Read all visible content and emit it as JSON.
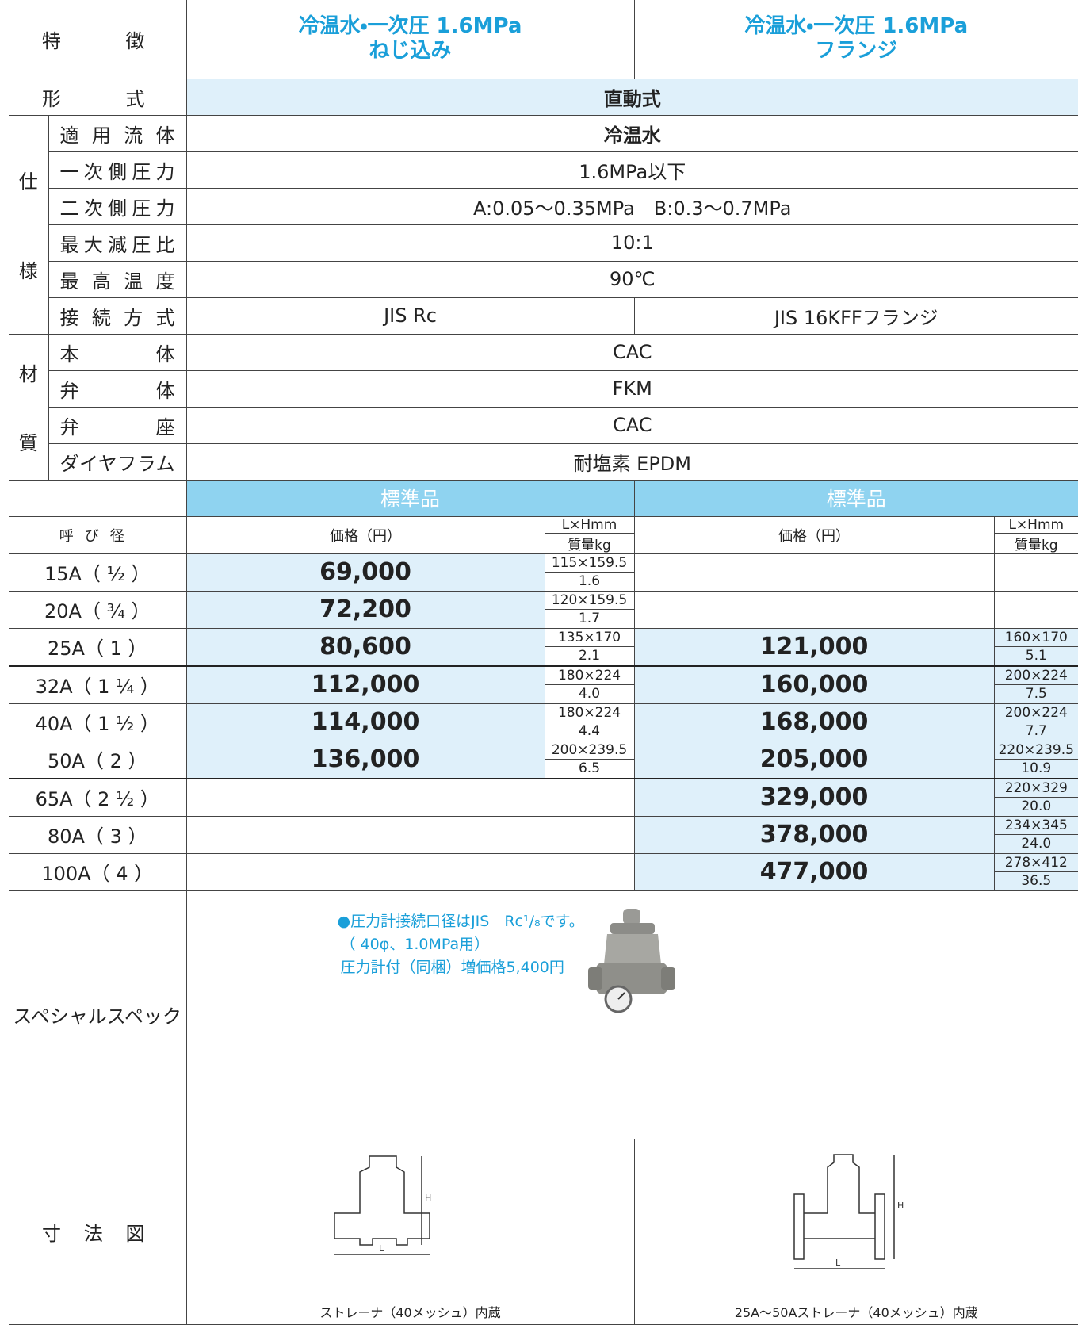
{
  "header": {
    "label": "特徴",
    "left": [
      "冷温水・一次圧 1.6MPa",
      "ねじ込み"
    ],
    "right": [
      "冷温水・一次圧 1.6MPa",
      "フランジ"
    ]
  },
  "type_row": {
    "label": "形式",
    "value": "直動式"
  },
  "spec": {
    "group": [
      "仕",
      "様"
    ],
    "rows": [
      {
        "label": "適用流体",
        "value": "冷温水"
      },
      {
        "label": "一次側圧力",
        "value": "1.6MPa以下"
      },
      {
        "label": "二次側圧力",
        "value": "A:0.05〜0.35MPa　B:0.3〜0.7MPa"
      },
      {
        "label": "最大減圧比",
        "value": "10:1"
      },
      {
        "label": "最高温度",
        "value": "90℃"
      },
      {
        "label": "接続方式",
        "left": "JIS Rc",
        "right": "JIS 16KFFフランジ"
      }
    ]
  },
  "material": {
    "group": [
      "材",
      "質"
    ],
    "rows": [
      {
        "label": "本体",
        "value": "CAC"
      },
      {
        "label": "弁体",
        "value": "FKM"
      },
      {
        "label": "弁座",
        "value": "CAC"
      },
      {
        "label": "ダイヤフラム",
        "value": "耐塩素 EPDM"
      }
    ]
  },
  "standard": {
    "left": "標準品",
    "right": "標準品"
  },
  "columns": {
    "size": "呼び径",
    "price": "価格（円）",
    "lxh": "L×Hmm",
    "mass": "質量kg"
  },
  "sizes": [
    {
      "size": "15A（ ¹⁄₂ ）",
      "left": {
        "price": "69,000",
        "lxh": "115×159.5",
        "mass": "1.6"
      },
      "right": null
    },
    {
      "size": "20A（ ³⁄₄ ）",
      "left": {
        "price": "72,200",
        "lxh": "120×159.5",
        "mass": "1.7"
      },
      "right": null
    },
    {
      "size": "25A（ 1 ）",
      "left": {
        "price": "80,600",
        "lxh": "135×170",
        "mass": "2.1"
      },
      "right": {
        "price": "121,000",
        "lxh": "160×170",
        "mass": "5.1"
      }
    },
    {
      "size": "32A（ 1 ¹⁄₄ ）",
      "left": {
        "price": "112,000",
        "lxh": "180×224",
        "mass": "4.0"
      },
      "right": {
        "price": "160,000",
        "lxh": "200×224",
        "mass": "7.5"
      }
    },
    {
      "size": "40A（ 1 ¹⁄₂ ）",
      "left": {
        "price": "114,000",
        "lxh": "180×224",
        "mass": "4.4"
      },
      "right": {
        "price": "168,000",
        "lxh": "200×224",
        "mass": "7.7"
      }
    },
    {
      "size": "50A（ 2 ）",
      "left": {
        "price": "136,000",
        "lxh": "200×239.5",
        "mass": "6.5"
      },
      "right": {
        "price": "205,000",
        "lxh": "220×239.5",
        "mass": "10.9"
      }
    },
    {
      "size": "65A（ 2 ¹⁄₂ ）",
      "left": null,
      "right": {
        "price": "329,000",
        "lxh": "220×329",
        "mass": "20.0"
      }
    },
    {
      "size": "80A（ 3 ）",
      "left": null,
      "right": {
        "price": "378,000",
        "lxh": "234×345",
        "mass": "24.0"
      }
    },
    {
      "size": "100A（ 4 ）",
      "left": null,
      "right": {
        "price": "477,000",
        "lxh": "278×412",
        "mass": "36.5"
      }
    }
  ],
  "special": {
    "label": "スペシャルスペック",
    "notes": [
      "●圧力計接続口径はJIS　Rc¹/₈です。",
      "（ 40φ、1.0MPa用）",
      "圧力計付（同梱）増価格5,400円"
    ]
  },
  "dims": {
    "label": "寸法図",
    "h": "H",
    "l": "L",
    "left_caption": "ストレーナ（40メッシュ）内蔵",
    "right_caption": "25A〜50Aストレーナ（40メッシュ）内蔵"
  }
}
